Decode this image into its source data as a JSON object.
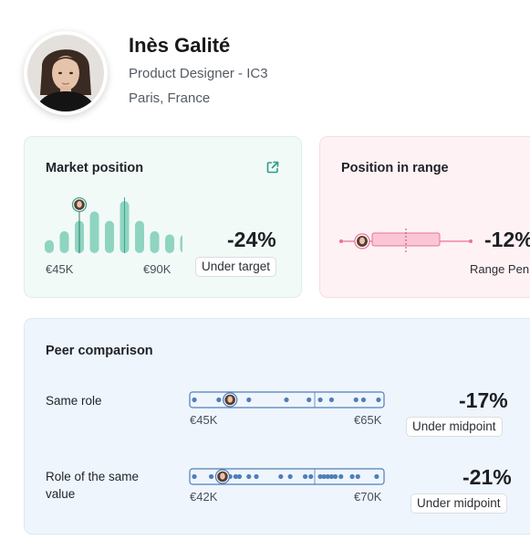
{
  "profile": {
    "name": "Inès Galité",
    "role": "Product Designer - IC3",
    "location": "Paris, France",
    "avatar_icon": "person-portrait-icon"
  },
  "market_position": {
    "title": "Market position",
    "icon": "external-link-icon",
    "histogram_levels": [
      0.25,
      0.42,
      0.62,
      0.8,
      0.62,
      1.0,
      0.62,
      0.42,
      0.36,
      0.36,
      0.25
    ],
    "axis_min_label": "€45K",
    "axis_max_label": "€90K",
    "percent": "-24%",
    "status": "Under target",
    "accent": "#8fd4c1"
  },
  "position_in_range": {
    "title": "Position in range",
    "percent": "-12%",
    "subtitle": "Range Pen",
    "accent": "#e9739a",
    "box_fill": "#fbc6d4"
  },
  "peer_comparison": {
    "title": "Peer comparison",
    "accent": "#4f7fb8",
    "rows": [
      {
        "label": "Same role",
        "min_label": "€45K",
        "max_label": "€65K",
        "percent": "-17%",
        "status": "Under midpoint",
        "self_position": 0.2,
        "peers": [
          0.01,
          0.14,
          0.3,
          0.5,
          0.62,
          0.68,
          0.74,
          0.87,
          0.91,
          0.99
        ]
      },
      {
        "label": "Role of the same value",
        "min_label": "€42K",
        "max_label": "€70K",
        "percent": "-21%",
        "status": "Under midpoint",
        "self_position": 0.16,
        "peers": [
          0.01,
          0.1,
          0.2,
          0.23,
          0.25,
          0.3,
          0.34,
          0.47,
          0.52,
          0.6,
          0.63,
          0.68,
          0.7,
          0.72,
          0.74,
          0.76,
          0.79,
          0.85,
          0.88,
          0.98
        ]
      }
    ]
  }
}
